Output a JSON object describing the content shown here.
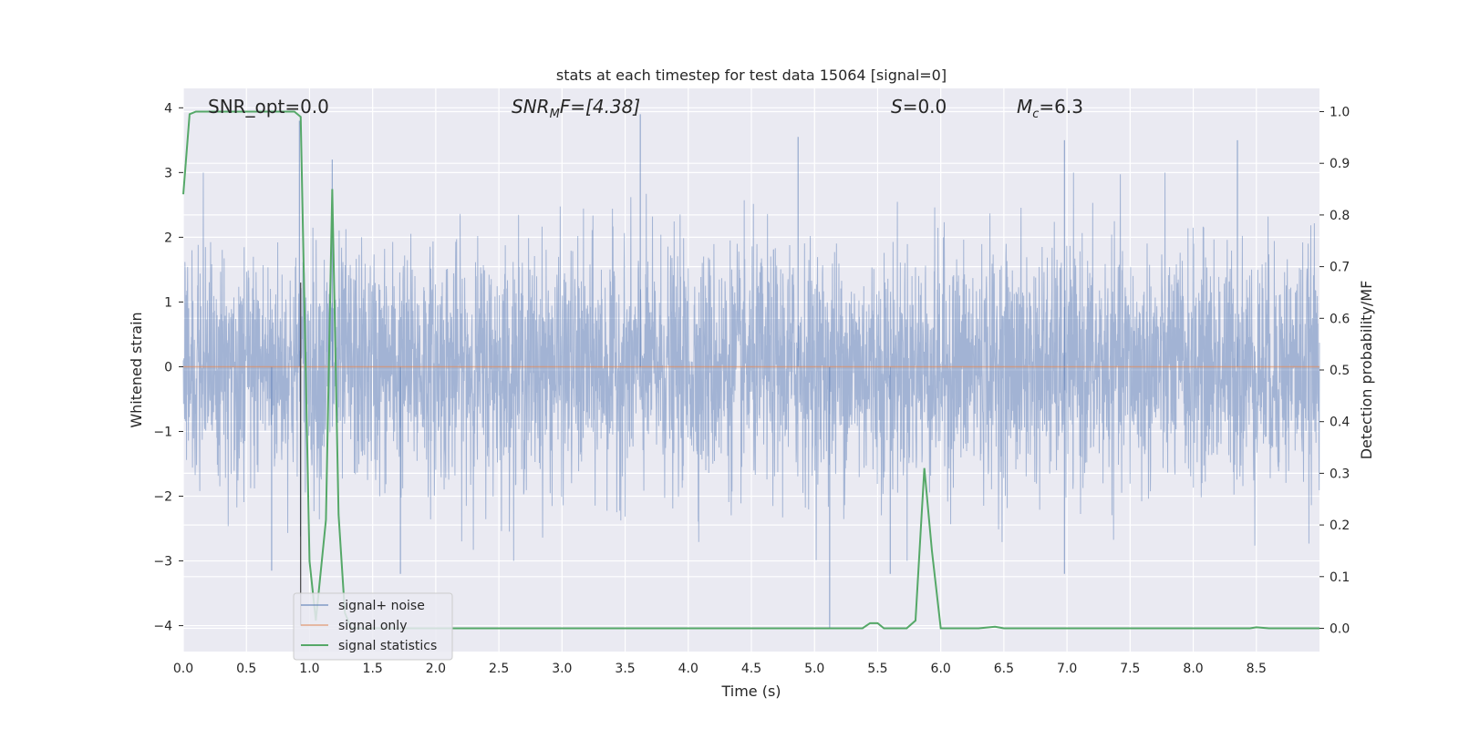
{
  "chart_data": {
    "type": "line",
    "title": "stats at each timestep for test data 15064 [signal=0]",
    "xlabel": "Time (s)",
    "ylabel_left": "Whitened strain",
    "ylabel_right": "Detection probability/MF",
    "xlim": [
      0.0,
      9.0
    ],
    "ylim_left": [
      -4.4,
      4.3
    ],
    "ylim_right": [
      -0.045,
      1.045
    ],
    "x_ticks": [
      "0.0",
      "0.5",
      "1.0",
      "1.5",
      "2.0",
      "2.5",
      "3.0",
      "3.5",
      "4.0",
      "4.5",
      "5.0",
      "5.5",
      "6.0",
      "6.5",
      "7.0",
      "7.5",
      "8.0",
      "8.5"
    ],
    "y_ticks_left": [
      "−4",
      "−3",
      "−2",
      "−1",
      "0",
      "1",
      "2",
      "3",
      "4"
    ],
    "y_ticks_right": [
      "0.0",
      "0.1",
      "0.2",
      "0.3",
      "0.4",
      "0.5",
      "0.6",
      "0.7",
      "0.8",
      "0.9",
      "1.0"
    ],
    "grid": true,
    "legend_position": "lower-left",
    "annotations": [
      {
        "id": "snr_opt",
        "text": "SNR_opt=0.0"
      },
      {
        "id": "snr_mf",
        "main": "SNR",
        "sub": "M",
        "rest": "F=[4.38]"
      },
      {
        "id": "s",
        "main": "S",
        "rest": "=0.0"
      },
      {
        "id": "mc",
        "main": "M",
        "sub": "c",
        "rest": "=6.3"
      }
    ],
    "series": [
      {
        "name": "signal+ noise",
        "axis": "left",
        "color": "#4c72b0",
        "style": "dense noise, approx. Gaussian, std ~0.9",
        "peaks": [
          {
            "x": 0.92,
            "y": 3.8
          },
          {
            "x": 1.18,
            "y": 3.2
          },
          {
            "x": 3.62,
            "y": 3.9
          },
          {
            "x": 4.87,
            "y": 3.55
          },
          {
            "x": 6.98,
            "y": 3.5
          },
          {
            "x": 8.35,
            "y": 3.5
          },
          {
            "x": 5.12,
            "y": -4.05
          },
          {
            "x": 5.6,
            "y": -3.2
          },
          {
            "x": 6.98,
            "y": -3.2
          },
          {
            "x": 0.7,
            "y": -3.15
          },
          {
            "x": 1.72,
            "y": -3.2
          }
        ]
      },
      {
        "name": "signal only",
        "axis": "left",
        "color": "#dd8452",
        "x": [
          0.0,
          9.0
        ],
        "y": [
          0.0,
          0.0
        ]
      },
      {
        "name": "signal statistics",
        "axis": "right",
        "color": "#55a868",
        "x": [
          0.0,
          0.05,
          0.1,
          0.15,
          0.2,
          0.3,
          0.4,
          0.5,
          0.6,
          0.7,
          0.8,
          0.88,
          0.93,
          1.0,
          1.05,
          1.13,
          1.18,
          1.23,
          1.28,
          1.33,
          1.4,
          1.5,
          2.0,
          3.0,
          4.0,
          5.0,
          5.38,
          5.44,
          5.5,
          5.55,
          5.73,
          5.8,
          5.87,
          5.93,
          6.0,
          6.3,
          6.43,
          6.5,
          7.0,
          8.0,
          8.45,
          8.5,
          8.6,
          9.0
        ],
        "y": [
          0.84,
          0.995,
          1.0,
          1.0,
          1.0,
          1.0,
          1.0,
          1.0,
          1.0,
          1.0,
          1.0,
          1.0,
          0.99,
          0.13,
          0.015,
          0.21,
          0.85,
          0.22,
          0.03,
          0.0,
          0.0,
          0.0,
          0.0,
          0.0,
          0.0,
          0.0,
          0.0,
          0.01,
          0.01,
          0.0,
          0.0,
          0.015,
          0.31,
          0.15,
          0.0,
          0.0,
          0.003,
          0.0,
          0.0,
          0.0,
          0.0,
          0.002,
          0.0,
          0.0
        ]
      }
    ],
    "reference_lines": [
      {
        "type": "vertical",
        "x": 0.93,
        "color": "#222222",
        "ymin_left": -4.0,
        "ymax_left": 1.3
      }
    ]
  },
  "legend": {
    "items": [
      {
        "label": "signal+ noise",
        "color": "#4c72b0"
      },
      {
        "label": "signal only",
        "color": "#dd8452"
      },
      {
        "label": "signal statistics",
        "color": "#55a868"
      }
    ]
  },
  "colors": {
    "plot_background": "#eaeaf2",
    "grid": "#ffffff",
    "noise": "#4c72b0",
    "signal": "#dd8452",
    "statistics": "#55a868"
  }
}
